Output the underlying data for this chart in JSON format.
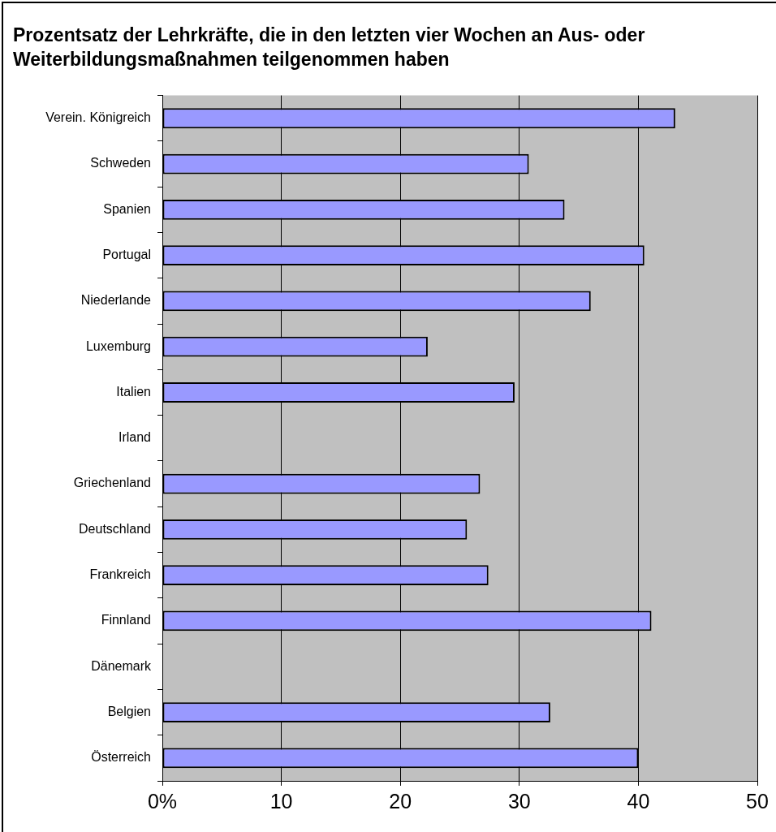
{
  "chart_data": {
    "type": "bar",
    "orientation": "horizontal",
    "title": "Prozentsatz der Lehrkräfte, die in den letzten vier Wochen an Aus- oder Weiterbildungsmaßnahmen teilgenommen haben",
    "categories": [
      "Verein. Königreich",
      "Schweden",
      "Spanien",
      "Portugal",
      "Niederlande",
      "Luxemburg",
      "Italien",
      "Irland",
      "Griechenland",
      "Deutschland",
      "Frankreich",
      "Finnland",
      "Dänemark",
      "Belgien",
      "Österreich"
    ],
    "values": [
      43.1,
      30.8,
      33.8,
      40.5,
      36.0,
      22.3,
      29.6,
      null,
      26.7,
      25.6,
      27.4,
      41.1,
      null,
      32.6,
      40.0
    ],
    "color": "#9999ff",
    "xlim": [
      0,
      50
    ],
    "xticks": [
      {
        "value": 0,
        "label": "0%"
      },
      10,
      20,
      30,
      40,
      50
    ],
    "grid": "x",
    "legend": false
  }
}
